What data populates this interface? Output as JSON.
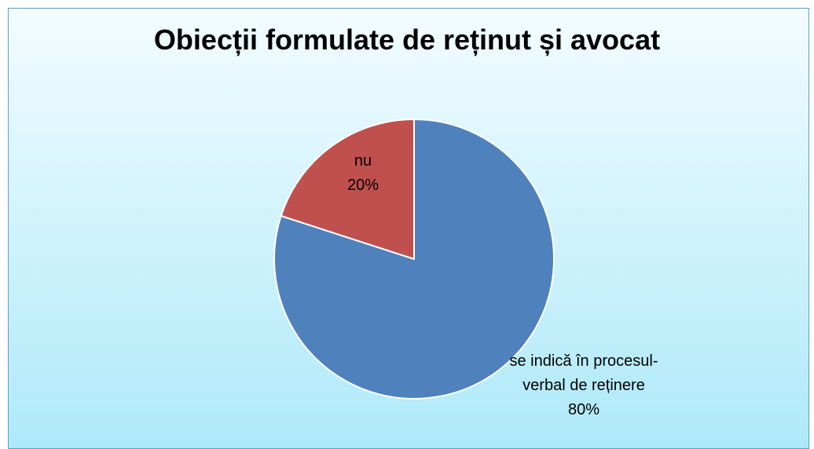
{
  "chart_data": {
    "type": "pie",
    "title": "Obiecții formulate de reținut și avocat",
    "categories": [
      "se indică în procesul-verbal de reținere",
      "nu"
    ],
    "values": [
      80,
      20
    ],
    "value_labels": [
      "80%",
      "20%"
    ],
    "colors": [
      "#4f81bd",
      "#c0504d"
    ]
  }
}
